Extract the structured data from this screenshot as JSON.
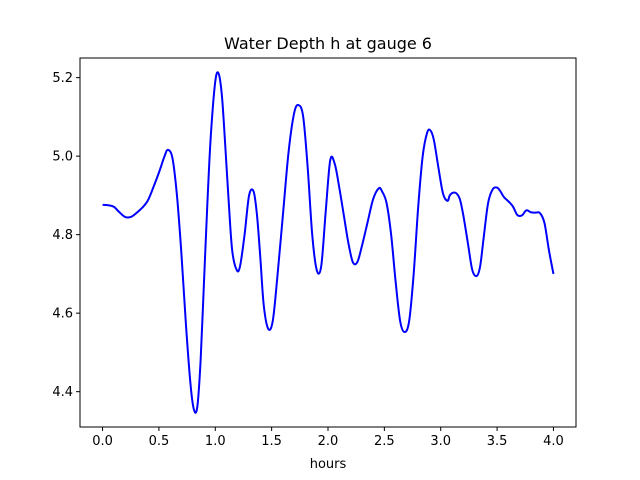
{
  "chart_data": {
    "type": "line",
    "title": "Water Depth h at gauge 6",
    "xlabel": "hours",
    "ylabel": "",
    "xlim": [
      -0.2,
      4.2
    ],
    "ylim": [
      4.31,
      5.25
    ],
    "xticks": [
      {
        "value": 0.0,
        "label": "0.0"
      },
      {
        "value": 0.5,
        "label": "0.5"
      },
      {
        "value": 1.0,
        "label": "1.0"
      },
      {
        "value": 1.5,
        "label": "1.5"
      },
      {
        "value": 2.0,
        "label": "2.0"
      },
      {
        "value": 2.5,
        "label": "2.5"
      },
      {
        "value": 3.0,
        "label": "3.0"
      },
      {
        "value": 3.5,
        "label": "3.5"
      },
      {
        "value": 4.0,
        "label": "4.0"
      }
    ],
    "yticks": [
      {
        "value": 4.4,
        "label": "4.4"
      },
      {
        "value": 4.6,
        "label": "4.6"
      },
      {
        "value": 4.8,
        "label": "4.8"
      },
      {
        "value": 5.0,
        "label": "5.0"
      },
      {
        "value": 5.2,
        "label": "5.2"
      }
    ],
    "grid": false,
    "series": [
      {
        "color": "#0000ff",
        "x": [
          0.0,
          0.05,
          0.1,
          0.15,
          0.2,
          0.25,
          0.3,
          0.35,
          0.4,
          0.45,
          0.5,
          0.55,
          0.58,
          0.62,
          0.66,
          0.7,
          0.74,
          0.78,
          0.81,
          0.84,
          0.87,
          0.9,
          0.93,
          0.96,
          1.0,
          1.03,
          1.06,
          1.09,
          1.12,
          1.15,
          1.19,
          1.22,
          1.26,
          1.3,
          1.34,
          1.37,
          1.4,
          1.43,
          1.47,
          1.51,
          1.55,
          1.6,
          1.65,
          1.7,
          1.74,
          1.78,
          1.82,
          1.86,
          1.9,
          1.94,
          1.98,
          2.02,
          2.06,
          2.1,
          2.14,
          2.18,
          2.22,
          2.26,
          2.3,
          2.35,
          2.4,
          2.45,
          2.48,
          2.52,
          2.56,
          2.6,
          2.64,
          2.68,
          2.72,
          2.76,
          2.8,
          2.84,
          2.88,
          2.91,
          2.94,
          2.98,
          3.02,
          3.06,
          3.08,
          3.11,
          3.14,
          3.17,
          3.2,
          3.24,
          3.28,
          3.32,
          3.35,
          3.38,
          3.42,
          3.46,
          3.5,
          3.53,
          3.56,
          3.6,
          3.64,
          3.68,
          3.72,
          3.76,
          3.8,
          3.84,
          3.88,
          3.92,
          3.96,
          4.0
        ],
        "y": [
          4.876,
          4.875,
          4.871,
          4.857,
          4.845,
          4.845,
          4.855,
          4.868,
          4.886,
          4.92,
          4.958,
          5.0,
          5.016,
          4.995,
          4.9,
          4.75,
          4.57,
          4.42,
          4.355,
          4.36,
          4.48,
          4.68,
          4.88,
          5.05,
          5.19,
          5.21,
          5.15,
          5.02,
          4.88,
          4.76,
          4.71,
          4.72,
          4.8,
          4.9,
          4.91,
          4.85,
          4.74,
          4.62,
          4.56,
          4.58,
          4.69,
          4.85,
          5.01,
          5.11,
          5.13,
          5.1,
          4.97,
          4.8,
          4.71,
          4.72,
          4.86,
          4.99,
          4.98,
          4.92,
          4.85,
          4.78,
          4.73,
          4.73,
          4.77,
          4.83,
          4.89,
          4.918,
          4.91,
          4.88,
          4.8,
          4.68,
          4.58,
          4.552,
          4.58,
          4.7,
          4.87,
          5.0,
          5.06,
          5.065,
          5.04,
          4.97,
          4.905,
          4.886,
          4.9,
          4.907,
          4.905,
          4.89,
          4.85,
          4.78,
          4.71,
          4.695,
          4.72,
          4.79,
          4.88,
          4.915,
          4.92,
          4.91,
          4.896,
          4.885,
          4.872,
          4.85,
          4.849,
          4.862,
          4.857,
          4.856,
          4.855,
          4.83,
          4.76,
          4.7
        ]
      }
    ]
  }
}
